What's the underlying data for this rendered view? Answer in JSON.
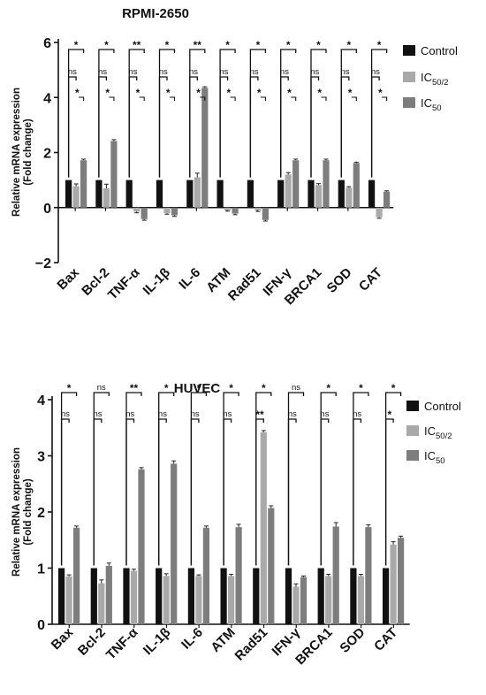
{
  "chart_data": [
    {
      "type": "bar",
      "title": "RPMI-2650",
      "ylabel_lines": [
        "Relative mRNA expression",
        "(Fold change)"
      ],
      "ylim": [
        -2,
        6
      ],
      "yticks": [
        "6",
        "4",
        "2",
        "0",
        "−2"
      ],
      "ytick_values": [
        6,
        4,
        2,
        0,
        -2
      ],
      "categories": [
        "Bax",
        "Bcl-2",
        "TNF-α",
        "IL-1β",
        "IL-6",
        "ATM",
        "Rad51",
        "IFN-γ",
        "BRCA1",
        "SOD",
        "CAT"
      ],
      "series": [
        {
          "name": "Control",
          "color": "#111111",
          "values": [
            1,
            1,
            1,
            1,
            1,
            1,
            1,
            1,
            1,
            1,
            1
          ],
          "err": [
            0,
            0,
            0,
            0,
            0,
            0,
            0,
            0,
            0,
            0,
            0
          ]
        },
        {
          "name": "IC50/2",
          "color": "#a9a9a9",
          "values": [
            0.78,
            0.7,
            -0.15,
            -0.2,
            1.1,
            -0.1,
            -0.1,
            1.2,
            0.82,
            0.72,
            -0.35
          ],
          "err": [
            0.08,
            0.15,
            0.04,
            0.04,
            0.15,
            0.03,
            0.04,
            0.07,
            0.05,
            0.04,
            0.04
          ]
        },
        {
          "name": "IC50",
          "color": "#7d7d7d",
          "values": [
            1.72,
            2.42,
            -0.42,
            -0.28,
            4.35,
            -0.22,
            -0.45,
            1.72,
            1.72,
            1.62,
            0.58
          ],
          "err": [
            0.04,
            0.05,
            0.04,
            0.04,
            0.04,
            0.04,
            0.04,
            0.04,
            0.04,
            0.03,
            0.03
          ]
        }
      ],
      "significance_top": [
        "*",
        "*",
        "**",
        "*",
        "**",
        "*",
        "*",
        "*",
        "*",
        "*",
        "*"
      ],
      "significance_ic50_2": [
        "ns",
        "ns",
        "ns",
        "ns",
        "ns",
        "ns",
        "ns",
        "ns",
        "ns",
        "ns",
        "ns"
      ],
      "significance_ic50": [
        "*",
        "*",
        "*",
        "*",
        "*",
        "*",
        "*",
        "*",
        "*",
        "*",
        "*"
      ],
      "legend": [
        "Control",
        "IC50/2",
        "IC50"
      ],
      "legend_position": "right"
    },
    {
      "type": "bar",
      "title": "HUVEC",
      "ylabel_lines": [
        "Relative mRNA expression",
        "(Fold change)"
      ],
      "ylim": [
        0,
        4
      ],
      "yticks": [
        "4",
        "3",
        "2",
        "1",
        "0"
      ],
      "ytick_values": [
        4,
        3,
        2,
        1,
        0
      ],
      "categories": [
        "Bax",
        "Bcl-2",
        "TNF-α",
        "IL-1β",
        "IL-6",
        "ATM",
        "Rad51",
        "IFN-γ",
        "BRCA1",
        "SOD",
        "CAT"
      ],
      "series": [
        {
          "name": "Control",
          "color": "#111111",
          "values": [
            1,
            1,
            1,
            1,
            1,
            1,
            1,
            1,
            1,
            1,
            1
          ],
          "err": [
            0,
            0,
            0,
            0,
            0,
            0,
            0,
            0,
            0,
            0,
            0
          ]
        },
        {
          "name": "IC50/2",
          "color": "#a9a9a9",
          "values": [
            0.85,
            0.73,
            0.95,
            0.86,
            0.86,
            0.86,
            3.42,
            0.67,
            0.86,
            0.86,
            1.42
          ],
          "err": [
            0.03,
            0.06,
            0.03,
            0.04,
            0.02,
            0.03,
            0.03,
            0.05,
            0.03,
            0.03,
            0.05
          ]
        },
        {
          "name": "IC50",
          "color": "#7d7d7d",
          "values": [
            1.72,
            1.04,
            2.76,
            2.86,
            1.72,
            1.73,
            2.07,
            0.84,
            1.74,
            1.73,
            1.54
          ],
          "err": [
            0.03,
            0.05,
            0.03,
            0.05,
            0.03,
            0.05,
            0.04,
            0.02,
            0.07,
            0.04,
            0.03
          ]
        }
      ],
      "significance_top": [
        "*",
        "ns",
        "**",
        "*",
        "*",
        "*",
        "*",
        "ns",
        "*",
        "*",
        "*"
      ],
      "significance_ic50_2": [
        "ns",
        "ns",
        "ns",
        "ns",
        "ns",
        "ns",
        "**",
        "ns",
        "ns",
        "ns",
        "*"
      ],
      "significance_ic50": [],
      "legend": [
        "Control",
        "IC50/2",
        "IC50"
      ],
      "legend_position": "right"
    }
  ]
}
